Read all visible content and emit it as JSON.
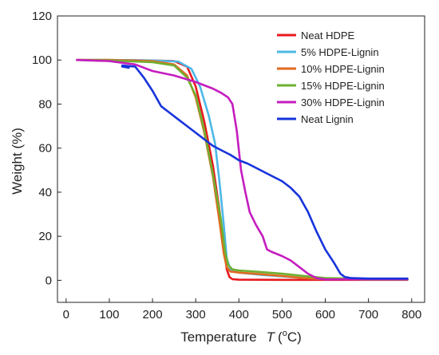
{
  "chart_data": {
    "type": "line",
    "title": "",
    "xlabel_prefix": "Temperature",
    "xlabel_symbol": "T",
    "xlabel_unit_open": "(",
    "xlabel_unit_super": "o",
    "xlabel_unit_close": "C)",
    "ylabel": "Weight (%)",
    "xlim": [
      -20,
      830
    ],
    "ylim": [
      -10,
      120
    ],
    "xticks": [
      0,
      100,
      200,
      300,
      400,
      500,
      600,
      700,
      800
    ],
    "yticks": [
      0,
      20,
      40,
      60,
      80,
      100,
      120
    ],
    "grid": false,
    "legend_position": "top-right",
    "series": [
      {
        "name": "Neat HDPE",
        "color": "#e8191d",
        "points": [
          [
            25,
            100
          ],
          [
            100,
            100
          ],
          [
            200,
            99.8
          ],
          [
            250,
            99.5
          ],
          [
            280,
            97
          ],
          [
            300,
            88
          ],
          [
            320,
            72
          ],
          [
            340,
            52
          ],
          [
            355,
            32
          ],
          [
            365,
            15
          ],
          [
            372,
            5
          ],
          [
            378,
            1.5
          ],
          [
            385,
            0.5
          ],
          [
            400,
            0.3
          ],
          [
            500,
            0.2
          ],
          [
            600,
            0.2
          ],
          [
            700,
            0.2
          ],
          [
            790,
            0.2
          ]
        ]
      },
      {
        "name": "5% HDPE-Lignin",
        "color": "#4cb8e6",
        "points": [
          [
            25,
            100
          ],
          [
            100,
            100
          ],
          [
            200,
            99.8
          ],
          [
            260,
            99.3
          ],
          [
            290,
            96
          ],
          [
            310,
            88
          ],
          [
            330,
            75
          ],
          [
            345,
            62
          ],
          [
            355,
            45
          ],
          [
            365,
            25
          ],
          [
            372,
            10
          ],
          [
            380,
            5
          ],
          [
            400,
            3.5
          ],
          [
            450,
            2.5
          ],
          [
            500,
            1.8
          ],
          [
            550,
            1
          ],
          [
            600,
            0.5
          ],
          [
            700,
            0.4
          ],
          [
            790,
            0.4
          ]
        ]
      },
      {
        "name": "10% HDPE-Lignin",
        "color": "#e06a1f",
        "points": [
          [
            25,
            100
          ],
          [
            100,
            100
          ],
          [
            200,
            99.5
          ],
          [
            250,
            98
          ],
          [
            280,
            93
          ],
          [
            300,
            83
          ],
          [
            320,
            67
          ],
          [
            340,
            47
          ],
          [
            355,
            27
          ],
          [
            365,
            12
          ],
          [
            372,
            6
          ],
          [
            380,
            4
          ],
          [
            400,
            3.5
          ],
          [
            450,
            2.8
          ],
          [
            500,
            2
          ],
          [
            550,
            1
          ],
          [
            600,
            0.6
          ],
          [
            700,
            0.5
          ],
          [
            790,
            0.5
          ]
        ]
      },
      {
        "name": "15% HDPE-Lignin",
        "color": "#6fb032",
        "points": [
          [
            25,
            100
          ],
          [
            100,
            99.8
          ],
          [
            200,
            99
          ],
          [
            250,
            97.5
          ],
          [
            280,
            92
          ],
          [
            300,
            84
          ],
          [
            320,
            68
          ],
          [
            340,
            48
          ],
          [
            358,
            28
          ],
          [
            368,
            13
          ],
          [
            375,
            7
          ],
          [
            385,
            5
          ],
          [
            400,
            4.5
          ],
          [
            450,
            3.8
          ],
          [
            500,
            3
          ],
          [
            550,
            2
          ],
          [
            600,
            1
          ],
          [
            700,
            0.6
          ],
          [
            790,
            0.5
          ]
        ]
      },
      {
        "name": "30% HDPE-Lignin",
        "color": "#c51cbf",
        "points": [
          [
            25,
            100
          ],
          [
            100,
            99.5
          ],
          [
            160,
            98
          ],
          [
            200,
            95
          ],
          [
            250,
            93
          ],
          [
            300,
            90
          ],
          [
            340,
            87
          ],
          [
            360,
            85
          ],
          [
            375,
            83
          ],
          [
            385,
            80
          ],
          [
            395,
            68
          ],
          [
            405,
            50
          ],
          [
            415,
            40
          ],
          [
            425,
            31
          ],
          [
            440,
            25
          ],
          [
            455,
            20
          ],
          [
            465,
            14
          ],
          [
            475,
            13
          ],
          [
            500,
            11
          ],
          [
            520,
            9
          ],
          [
            540,
            6
          ],
          [
            560,
            3
          ],
          [
            580,
            1
          ],
          [
            600,
            0.4
          ],
          [
            700,
            0.5
          ],
          [
            790,
            0.5
          ]
        ]
      },
      {
        "name": "Neat Lignin",
        "color": "#1733dc",
        "points": [
          [
            130,
            97
          ],
          [
            145,
            96.5
          ],
          [
            130,
            97.5
          ],
          [
            160,
            97
          ],
          [
            180,
            92
          ],
          [
            200,
            86
          ],
          [
            220,
            79
          ],
          [
            240,
            76
          ],
          [
            260,
            73
          ],
          [
            280,
            70
          ],
          [
            300,
            67
          ],
          [
            320,
            64
          ],
          [
            340,
            61
          ],
          [
            360,
            59
          ],
          [
            380,
            57
          ],
          [
            400,
            54.5
          ],
          [
            420,
            53
          ],
          [
            440,
            51
          ],
          [
            460,
            49
          ],
          [
            480,
            47
          ],
          [
            500,
            45
          ],
          [
            520,
            42
          ],
          [
            540,
            38
          ],
          [
            560,
            31
          ],
          [
            580,
            22
          ],
          [
            600,
            14
          ],
          [
            620,
            8
          ],
          [
            635,
            3
          ],
          [
            645,
            1.5
          ],
          [
            660,
            1
          ],
          [
            700,
            0.8
          ],
          [
            790,
            0.8
          ]
        ]
      }
    ]
  }
}
